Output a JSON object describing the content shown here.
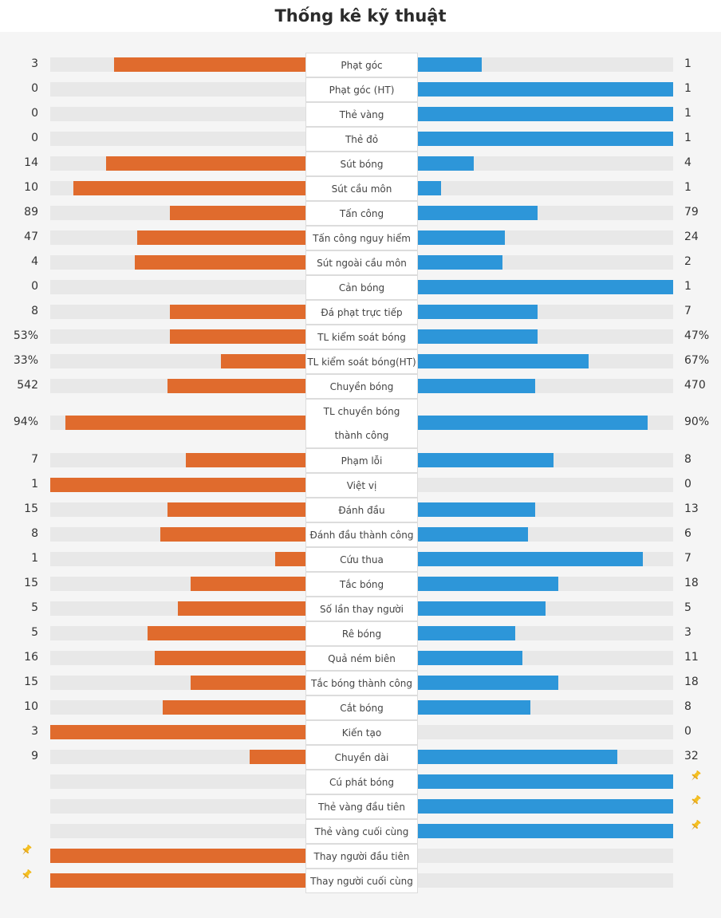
{
  "title": "Thống kê kỹ thuật",
  "colors": {
    "home": "#e06b2d",
    "away": "#2d96d9",
    "track": "#e8e8e8"
  },
  "chart_data": {
    "type": "bar",
    "orientation": "diverging-horizontal",
    "series": [
      {
        "name": "",
        "side": "left"
      },
      {
        "name": "",
        "side": "right"
      }
    ],
    "rows": [
      {
        "label": "Phạt góc",
        "left": "3",
        "right": "1",
        "left_share": 0.75,
        "right_share": 0.25
      },
      {
        "label": "Phạt góc (HT)",
        "left": "0",
        "right": "1",
        "left_share": 0,
        "right_share": 1
      },
      {
        "label": "Thẻ vàng",
        "left": "0",
        "right": "1",
        "left_share": 0,
        "right_share": 1
      },
      {
        "label": "Thẻ đỏ",
        "left": "0",
        "right": "1",
        "left_share": 0,
        "right_share": 1
      },
      {
        "label": "Sút bóng",
        "left": "14",
        "right": "4",
        "left_share": 0.78,
        "right_share": 0.22
      },
      {
        "label": "Sút cầu môn",
        "left": "10",
        "right": "1",
        "left_share": 0.91,
        "right_share": 0.09
      },
      {
        "label": "Tấn công",
        "left": "89",
        "right": "79",
        "left_share": 0.53,
        "right_share": 0.47
      },
      {
        "label": "Tấn công nguy hiểm",
        "left": "47",
        "right": "24",
        "left_share": 0.66,
        "right_share": 0.34
      },
      {
        "label": "Sút ngoài cầu môn",
        "left": "4",
        "right": "2",
        "left_share": 0.67,
        "right_share": 0.33
      },
      {
        "label": "Cản bóng",
        "left": "0",
        "right": "1",
        "left_share": 0,
        "right_share": 1
      },
      {
        "label": "Đá phạt trực tiếp",
        "left": "8",
        "right": "7",
        "left_share": 0.53,
        "right_share": 0.47
      },
      {
        "label": "TL kiểm soát bóng",
        "left": "53%",
        "right": "47%",
        "left_share": 0.53,
        "right_share": 0.47
      },
      {
        "label": "TL kiểm soát bóng(HT)",
        "left": "33%",
        "right": "67%",
        "left_share": 0.33,
        "right_share": 0.67
      },
      {
        "label": "Chuyền bóng",
        "left": "542",
        "right": "470",
        "left_share": 0.54,
        "right_share": 0.46
      },
      {
        "label": "TL chuyền bóng thành công",
        "left": "94%",
        "right": "90%",
        "left_share": 0.94,
        "right_share": 0.9
      },
      {
        "label": "Phạm lỗi",
        "left": "7",
        "right": "8",
        "left_share": 0.47,
        "right_share": 0.53
      },
      {
        "label": "Việt vị",
        "left": "1",
        "right": "0",
        "left_share": 1,
        "right_share": 0
      },
      {
        "label": "Đánh đầu",
        "left": "15",
        "right": "13",
        "left_share": 0.54,
        "right_share": 0.46
      },
      {
        "label": "Đánh đầu thành công",
        "left": "8",
        "right": "6",
        "left_share": 0.57,
        "right_share": 0.43
      },
      {
        "label": "Cứu thua",
        "left": "1",
        "right": "7",
        "left_share": 0.12,
        "right_share": 0.88
      },
      {
        "label": "Tắc bóng",
        "left": "15",
        "right": "18",
        "left_share": 0.45,
        "right_share": 0.55
      },
      {
        "label": "Số lần thay người",
        "left": "5",
        "right": "5",
        "left_share": 0.5,
        "right_share": 0.5
      },
      {
        "label": "Rê bóng",
        "left": "5",
        "right": "3",
        "left_share": 0.62,
        "right_share": 0.38
      },
      {
        "label": "Quả ném biên",
        "left": "16",
        "right": "11",
        "left_share": 0.59,
        "right_share": 0.41
      },
      {
        "label": "Tắc bóng thành công",
        "left": "15",
        "right": "18",
        "left_share": 0.45,
        "right_share": 0.55
      },
      {
        "label": "Cắt bóng",
        "left": "10",
        "right": "8",
        "left_share": 0.56,
        "right_share": 0.44
      },
      {
        "label": "Kiến tạo",
        "left": "3",
        "right": "0",
        "left_share": 1,
        "right_share": 0
      },
      {
        "label": "Chuyền dài",
        "left": "9",
        "right": "32",
        "left_share": 0.22,
        "right_share": 0.78
      },
      {
        "label": "Cú phát bóng",
        "left": "",
        "right": "",
        "left_share": 0,
        "right_share": 1,
        "marker": "right"
      },
      {
        "label": "Thẻ vàng đầu tiên",
        "left": "",
        "right": "",
        "left_share": 0,
        "right_share": 1,
        "marker": "right"
      },
      {
        "label": "Thẻ vàng cuối cùng",
        "left": "",
        "right": "",
        "left_share": 0,
        "right_share": 1,
        "marker": "right"
      },
      {
        "label": "Thay người đầu tiên",
        "left": "",
        "right": "",
        "left_share": 1,
        "right_share": 0,
        "marker": "left"
      },
      {
        "label": "Thay người cuối cùng",
        "left": "",
        "right": "",
        "left_share": 1,
        "right_share": 0,
        "marker": "left"
      }
    ],
    "marker_icon": "pin-icon"
  }
}
